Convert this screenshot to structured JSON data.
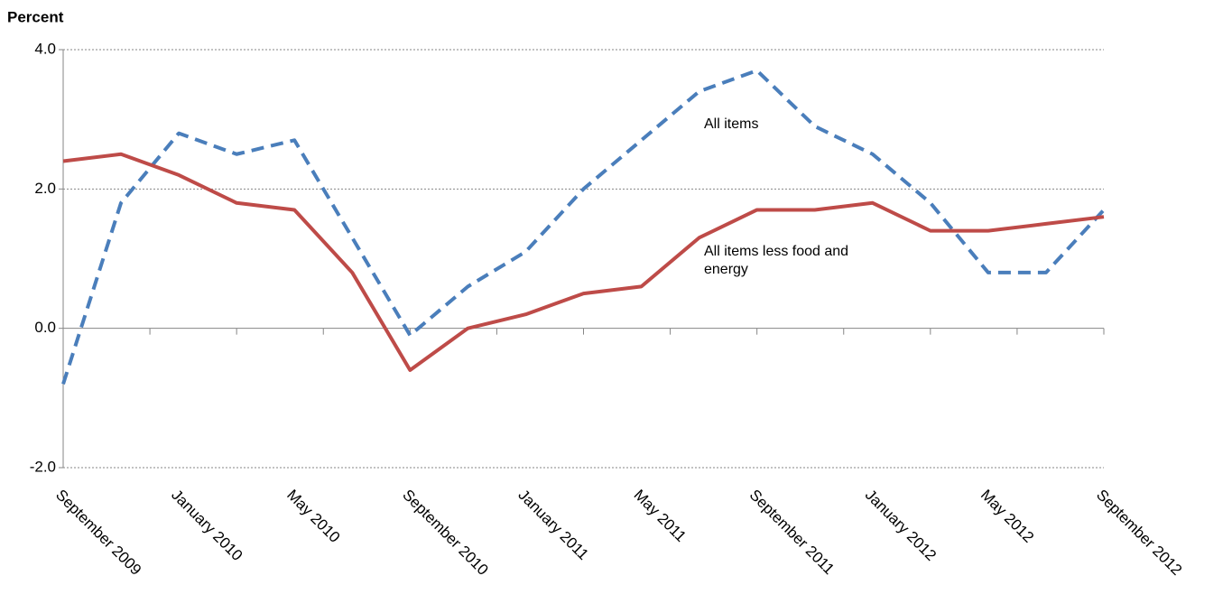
{
  "chart_data": {
    "type": "line",
    "y_label": "Percent",
    "categories": [
      "September 2009",
      null,
      "January 2010",
      null,
      "May 2010",
      null,
      "September 2010",
      null,
      "January 2011",
      null,
      "May 2011",
      null,
      "September 2011",
      null,
      "January 2012",
      null,
      "May 2012",
      null,
      "September 2012"
    ],
    "series": [
      {
        "name": "All items",
        "color": "#4a7ebb",
        "dashed": true,
        "values": [
          -0.8,
          1.8,
          2.8,
          2.5,
          2.7,
          1.3,
          -0.1,
          0.6,
          1.1,
          2.0,
          2.7,
          3.4,
          3.7,
          2.9,
          2.5,
          1.8,
          0.8,
          0.8,
          1.7
        ]
      },
      {
        "name": "All items less food and energy",
        "color": "#be4b48",
        "dashed": false,
        "values": [
          2.4,
          2.5,
          2.2,
          1.8,
          1.7,
          0.8,
          -0.6,
          0.0,
          0.2,
          0.5,
          0.6,
          1.3,
          1.7,
          1.7,
          1.8,
          1.4,
          1.4,
          1.5,
          1.6
        ]
      }
    ],
    "ylim": [
      -2.0,
      4.0
    ],
    "yticks": [
      {
        "value": -2.0,
        "label": "-2.0"
      },
      {
        "value": 0.0,
        "label": "0.0"
      },
      {
        "value": 2.0,
        "label": "2.0"
      },
      {
        "value": 4.0,
        "label": "4.0"
      }
    ],
    "grid": true
  }
}
